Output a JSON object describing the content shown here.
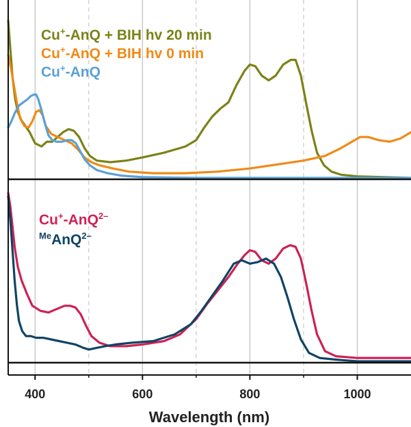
{
  "chart_data": [
    {
      "type": "line",
      "panel": "top",
      "xlabel": "Wavelength (nm)",
      "xlim": [
        350,
        1100
      ],
      "xticks": [
        400,
        600,
        800,
        1000
      ],
      "minor_xticks": [
        500,
        700,
        900
      ],
      "ylim": [
        0,
        1
      ],
      "yaxis_visible": false,
      "grid": "vertical",
      "legend_placement": "top-left",
      "series": [
        {
          "name_base": "Cu",
          "name_sup": "+",
          "name_rest": "-AnQ + BIH hv 20 min",
          "color": "#7b8217",
          "points": [
            [
              350,
              1.0
            ],
            [
              354,
              0.82
            ],
            [
              358,
              0.64
            ],
            [
              363,
              0.5
            ],
            [
              368,
              0.42
            ],
            [
              374,
              0.37
            ],
            [
              382,
              0.33
            ],
            [
              390,
              0.29
            ],
            [
              400,
              0.22
            ],
            [
              412,
              0.2
            ],
            [
              422,
              0.23
            ],
            [
              432,
              0.23
            ],
            [
              442,
              0.26
            ],
            [
              452,
              0.29
            ],
            [
              462,
              0.31
            ],
            [
              472,
              0.3
            ],
            [
              482,
              0.26
            ],
            [
              492,
              0.19
            ],
            [
              502,
              0.14
            ],
            [
              515,
              0.11
            ],
            [
              540,
              0.1
            ],
            [
              570,
              0.11
            ],
            [
              600,
              0.13
            ],
            [
              640,
              0.16
            ],
            [
              680,
              0.2
            ],
            [
              700,
              0.24
            ],
            [
              715,
              0.32
            ],
            [
              730,
              0.39
            ],
            [
              745,
              0.44
            ],
            [
              760,
              0.48
            ],
            [
              775,
              0.59
            ],
            [
              790,
              0.68
            ],
            [
              800,
              0.72
            ],
            [
              810,
              0.71
            ],
            [
              822,
              0.65
            ],
            [
              835,
              0.62
            ],
            [
              848,
              0.65
            ],
            [
              862,
              0.72
            ],
            [
              876,
              0.75
            ],
            [
              885,
              0.75
            ],
            [
              895,
              0.65
            ],
            [
              905,
              0.47
            ],
            [
              915,
              0.3
            ],
            [
              925,
              0.16
            ],
            [
              938,
              0.08
            ],
            [
              952,
              0.04
            ],
            [
              970,
              0.02
            ],
            [
              1000,
              0.01
            ],
            [
              1050,
              0.005
            ],
            [
              1100,
              0.0
            ]
          ]
        },
        {
          "name_base": "Cu",
          "name_sup": "+",
          "name_rest": "-AnQ + BIH hv 0 min",
          "color": "#ef8a17",
          "points": [
            [
              350,
              0.78
            ],
            [
              355,
              0.7
            ],
            [
              360,
              0.6
            ],
            [
              366,
              0.48
            ],
            [
              372,
              0.38
            ],
            [
              380,
              0.33
            ],
            [
              388,
              0.32
            ],
            [
              395,
              0.36
            ],
            [
              402,
              0.42
            ],
            [
              408,
              0.43
            ],
            [
              414,
              0.4
            ],
            [
              420,
              0.33
            ],
            [
              430,
              0.28
            ],
            [
              442,
              0.26
            ],
            [
              455,
              0.24
            ],
            [
              468,
              0.22
            ],
            [
              480,
              0.18
            ],
            [
              492,
              0.13
            ],
            [
              505,
              0.1
            ],
            [
              520,
              0.08
            ],
            [
              545,
              0.06
            ],
            [
              575,
              0.04
            ],
            [
              620,
              0.03
            ],
            [
              680,
              0.03
            ],
            [
              740,
              0.04
            ],
            [
              800,
              0.06
            ],
            [
              860,
              0.09
            ],
            [
              900,
              0.11
            ],
            [
              940,
              0.14
            ],
            [
              970,
              0.19
            ],
            [
              990,
              0.23
            ],
            [
              1005,
              0.26
            ],
            [
              1020,
              0.26
            ],
            [
              1040,
              0.24
            ],
            [
              1060,
              0.23
            ],
            [
              1080,
              0.25
            ],
            [
              1100,
              0.29
            ]
          ]
        },
        {
          "name_base": "Cu",
          "name_sup": "+",
          "name_rest": "-AnQ",
          "color": "#5aa0d6",
          "points": [
            [
              350,
              0.32
            ],
            [
              356,
              0.36
            ],
            [
              362,
              0.41
            ],
            [
              370,
              0.46
            ],
            [
              378,
              0.48
            ],
            [
              386,
              0.5
            ],
            [
              392,
              0.52
            ],
            [
              398,
              0.53
            ],
            [
              402,
              0.53
            ],
            [
              406,
              0.5
            ],
            [
              412,
              0.43
            ],
            [
              418,
              0.35
            ],
            [
              425,
              0.27
            ],
            [
              432,
              0.24
            ],
            [
              440,
              0.23
            ],
            [
              450,
              0.23
            ],
            [
              460,
              0.24
            ],
            [
              468,
              0.24
            ],
            [
              476,
              0.22
            ],
            [
              484,
              0.17
            ],
            [
              492,
              0.12
            ],
            [
              502,
              0.08
            ],
            [
              515,
              0.05
            ],
            [
              535,
              0.03
            ],
            [
              560,
              0.015
            ],
            [
              600,
              0.005
            ],
            [
              700,
              0.0
            ],
            [
              800,
              0.0
            ],
            [
              900,
              0.0
            ],
            [
              1000,
              0.0
            ],
            [
              1100,
              0.0
            ]
          ]
        }
      ]
    },
    {
      "type": "line",
      "panel": "bottom",
      "xlabel": "Wavelength (nm)",
      "xlim": [
        350,
        1100
      ],
      "xticks": [
        400,
        600,
        800,
        1000
      ],
      "minor_xticks": [
        500,
        700,
        900
      ],
      "ylim": [
        0,
        1
      ],
      "yaxis_visible": false,
      "grid": "vertical",
      "legend_placement": "top-left",
      "series": [
        {
          "name_base": "Cu",
          "name_sup": "+",
          "name_rest": "-AnQ",
          "name_sup2": "2–",
          "color": "#cc2255",
          "points": [
            [
              350,
              1.0
            ],
            [
              354,
              0.92
            ],
            [
              358,
              0.8
            ],
            [
              362,
              0.68
            ],
            [
              368,
              0.56
            ],
            [
              375,
              0.48
            ],
            [
              385,
              0.4
            ],
            [
              395,
              0.33
            ],
            [
              410,
              0.3
            ],
            [
              425,
              0.29
            ],
            [
              440,
              0.31
            ],
            [
              455,
              0.33
            ],
            [
              465,
              0.33
            ],
            [
              475,
              0.32
            ],
            [
              485,
              0.28
            ],
            [
              495,
              0.21
            ],
            [
              505,
              0.15
            ],
            [
              520,
              0.11
            ],
            [
              540,
              0.09
            ],
            [
              570,
              0.09
            ],
            [
              600,
              0.1
            ],
            [
              640,
              0.12
            ],
            [
              670,
              0.16
            ],
            [
              700,
              0.25
            ],
            [
              720,
              0.34
            ],
            [
              740,
              0.42
            ],
            [
              760,
              0.5
            ],
            [
              775,
              0.57
            ],
            [
              790,
              0.63
            ],
            [
              800,
              0.66
            ],
            [
              810,
              0.65
            ],
            [
              822,
              0.6
            ],
            [
              835,
              0.58
            ],
            [
              848,
              0.61
            ],
            [
              862,
              0.67
            ],
            [
              875,
              0.69
            ],
            [
              885,
              0.68
            ],
            [
              895,
              0.61
            ],
            [
              905,
              0.46
            ],
            [
              915,
              0.3
            ],
            [
              925,
              0.16
            ],
            [
              940,
              0.06
            ],
            [
              960,
              0.03
            ],
            [
              1000,
              0.02
            ],
            [
              1100,
              0.02
            ]
          ]
        },
        {
          "name_pre": "Me",
          "name_base": "AnQ",
          "name_sup": "2–",
          "color": "#0f4465",
          "points": [
            [
              350,
              0.98
            ],
            [
              354,
              0.84
            ],
            [
              358,
              0.66
            ],
            [
              362,
              0.48
            ],
            [
              366,
              0.34
            ],
            [
              370,
              0.24
            ],
            [
              376,
              0.18
            ],
            [
              383,
              0.15
            ],
            [
              392,
              0.15
            ],
            [
              402,
              0.14
            ],
            [
              415,
              0.14
            ],
            [
              430,
              0.13
            ],
            [
              445,
              0.12
            ],
            [
              460,
              0.11
            ],
            [
              475,
              0.1
            ],
            [
              490,
              0.08
            ],
            [
              500,
              0.07
            ],
            [
              515,
              0.08
            ],
            [
              530,
              0.09
            ],
            [
              550,
              0.1
            ],
            [
              580,
              0.11
            ],
            [
              620,
              0.12
            ],
            [
              660,
              0.16
            ],
            [
              690,
              0.22
            ],
            [
              710,
              0.3
            ],
            [
              730,
              0.39
            ],
            [
              750,
              0.48
            ],
            [
              770,
              0.58
            ],
            [
              785,
              0.6
            ],
            [
              800,
              0.58
            ],
            [
              815,
              0.59
            ],
            [
              830,
              0.61
            ],
            [
              845,
              0.58
            ],
            [
              858,
              0.5
            ],
            [
              870,
              0.38
            ],
            [
              882,
              0.25
            ],
            [
              895,
              0.13
            ],
            [
              910,
              0.05
            ],
            [
              930,
              0.02
            ],
            [
              960,
              0.01
            ],
            [
              1000,
              0.0
            ],
            [
              1100,
              0.0
            ]
          ]
        }
      ]
    }
  ],
  "x_tick_labels": [
    "400",
    "600",
    "800",
    "1000"
  ]
}
